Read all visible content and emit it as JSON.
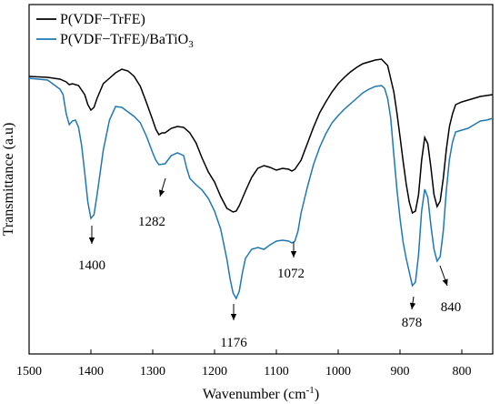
{
  "chart_data": {
    "type": "line",
    "xlabel": "Wavenumber (cm",
    "xlabel_sup": "-1",
    "xlabel_close": ")",
    "ylabel": "Transmittance (a.u)",
    "xlim": [
      1500,
      750
    ],
    "x_reversed": true,
    "xticks": [
      1500,
      1400,
      1300,
      1200,
      1100,
      1000,
      900,
      800
    ],
    "y_tick_labels_shown": false,
    "grid": false,
    "legend_position": "top-left",
    "series": [
      {
        "name": "P(VDF−TrFE)",
        "color": "#000000",
        "points": [
          [
            1500,
            84
          ],
          [
            1470,
            85
          ],
          [
            1450,
            87
          ],
          [
            1440,
            90
          ],
          [
            1435,
            93
          ],
          [
            1430,
            92
          ],
          [
            1420,
            94
          ],
          [
            1410,
            104
          ],
          [
            1405,
            115
          ],
          [
            1400,
            121
          ],
          [
            1395,
            118
          ],
          [
            1390,
            108
          ],
          [
            1380,
            92
          ],
          [
            1370,
            86
          ],
          [
            1360,
            80
          ],
          [
            1350,
            76
          ],
          [
            1340,
            78
          ],
          [
            1330,
            84
          ],
          [
            1320,
            95
          ],
          [
            1310,
            113
          ],
          [
            1300,
            132
          ],
          [
            1295,
            142
          ],
          [
            1290,
            148
          ],
          [
            1285,
            146
          ],
          [
            1280,
            146
          ],
          [
            1270,
            141
          ],
          [
            1260,
            139
          ],
          [
            1250,
            140
          ],
          [
            1240,
            146
          ],
          [
            1230,
            157
          ],
          [
            1220,
            174
          ],
          [
            1210,
            189
          ],
          [
            1200,
            200
          ],
          [
            1190,
            216
          ],
          [
            1180,
            229
          ],
          [
            1170,
            233
          ],
          [
            1165,
            232
          ],
          [
            1160,
            226
          ],
          [
            1150,
            210
          ],
          [
            1140,
            195
          ],
          [
            1130,
            185
          ],
          [
            1120,
            182
          ],
          [
            1110,
            184
          ],
          [
            1100,
            187
          ],
          [
            1090,
            185
          ],
          [
            1080,
            186
          ],
          [
            1075,
            188
          ],
          [
            1070,
            186
          ],
          [
            1060,
            176
          ],
          [
            1050,
            158
          ],
          [
            1040,
            140
          ],
          [
            1030,
            124
          ],
          [
            1020,
            112
          ],
          [
            1010,
            101
          ],
          [
            1000,
            92
          ],
          [
            990,
            85
          ],
          [
            980,
            79
          ],
          [
            970,
            74
          ],
          [
            960,
            70
          ],
          [
            950,
            68
          ],
          [
            940,
            66
          ],
          [
            930,
            65
          ],
          [
            920,
            72
          ],
          [
            910,
            101
          ],
          [
            905,
            124
          ],
          [
            900,
            150
          ],
          [
            895,
            177
          ],
          [
            890,
            202
          ],
          [
            885,
            222
          ],
          [
            880,
            234
          ],
          [
            875,
            232
          ],
          [
            870,
            214
          ],
          [
            865,
            176
          ],
          [
            860,
            151
          ],
          [
            855,
            158
          ],
          [
            850,
            184
          ],
          [
            845,
            214
          ],
          [
            840,
            227
          ],
          [
            835,
            221
          ],
          [
            830,
            196
          ],
          [
            825,
            164
          ],
          [
            820,
            139
          ],
          [
            815,
            125
          ],
          [
            810,
            115
          ],
          [
            800,
            112
          ],
          [
            790,
            110
          ],
          [
            780,
            108
          ],
          [
            770,
            106
          ],
          [
            760,
            105
          ],
          [
            750,
            104
          ]
        ]
      },
      {
        "name": "P(VDF−TrFE)/BaTiO",
        "name_sub": "3",
        "color": "#1f77b4",
        "points": [
          [
            1500,
            86
          ],
          [
            1470,
            88
          ],
          [
            1460,
            93
          ],
          [
            1450,
            98
          ],
          [
            1445,
            104
          ],
          [
            1440,
            125
          ],
          [
            1435,
            137
          ],
          [
            1430,
            133
          ],
          [
            1425,
            132
          ],
          [
            1420,
            140
          ],
          [
            1415,
            160
          ],
          [
            1410,
            190
          ],
          [
            1405,
            222
          ],
          [
            1400,
            240
          ],
          [
            1395,
            236
          ],
          [
            1390,
            214
          ],
          [
            1380,
            165
          ],
          [
            1370,
            132
          ],
          [
            1360,
            117
          ],
          [
            1350,
            118
          ],
          [
            1340,
            123
          ],
          [
            1330,
            128
          ],
          [
            1320,
            135
          ],
          [
            1310,
            150
          ],
          [
            1300,
            168
          ],
          [
            1295,
            176
          ],
          [
            1290,
            181
          ],
          [
            1280,
            180
          ],
          [
            1270,
            171
          ],
          [
            1260,
            168
          ],
          [
            1250,
            171
          ],
          [
            1245,
            185
          ],
          [
            1240,
            196
          ],
          [
            1230,
            203
          ],
          [
            1220,
            209
          ],
          [
            1210,
            218
          ],
          [
            1200,
            232
          ],
          [
            1190,
            252
          ],
          [
            1180,
            285
          ],
          [
            1175,
            306
          ],
          [
            1170,
            322
          ],
          [
            1165,
            328
          ],
          [
            1160,
            320
          ],
          [
            1155,
            300
          ],
          [
            1150,
            284
          ],
          [
            1140,
            274
          ],
          [
            1130,
            272
          ],
          [
            1120,
            274
          ],
          [
            1110,
            269
          ],
          [
            1100,
            265
          ],
          [
            1090,
            264
          ],
          [
            1080,
            265
          ],
          [
            1075,
            267
          ],
          [
            1070,
            265
          ],
          [
            1065,
            254
          ],
          [
            1060,
            234
          ],
          [
            1050,
            206
          ],
          [
            1040,
            181
          ],
          [
            1030,
            162
          ],
          [
            1020,
            147
          ],
          [
            1010,
            135
          ],
          [
            1000,
            127
          ],
          [
            990,
            120
          ],
          [
            980,
            114
          ],
          [
            970,
            108
          ],
          [
            960,
            102
          ],
          [
            950,
            98
          ],
          [
            940,
            95
          ],
          [
            930,
            94
          ],
          [
            925,
            97
          ],
          [
            920,
            108
          ],
          [
            915,
            130
          ],
          [
            910,
            170
          ],
          [
            905,
            208
          ],
          [
            900,
            240
          ],
          [
            895,
            266
          ],
          [
            890,
            284
          ],
          [
            885,
            299
          ],
          [
            880,
            314
          ],
          [
            875,
            310
          ],
          [
            870,
            280
          ],
          [
            865,
            232
          ],
          [
            860,
            208
          ],
          [
            855,
            217
          ],
          [
            850,
            248
          ],
          [
            845,
            274
          ],
          [
            840,
            287
          ],
          [
            835,
            282
          ],
          [
            830,
            254
          ],
          [
            825,
            209
          ],
          [
            820,
            175
          ],
          [
            815,
            156
          ],
          [
            810,
            145
          ],
          [
            800,
            143
          ],
          [
            790,
            141
          ],
          [
            780,
            137
          ],
          [
            770,
            133
          ],
          [
            760,
            132
          ],
          [
            750,
            130
          ]
        ]
      }
    ],
    "annotations": [
      {
        "label": "1400",
        "x": 1400
      },
      {
        "label": "1282",
        "x": 1282
      },
      {
        "label": "1176",
        "x": 1176
      },
      {
        "label": "1072",
        "x": 1072
      },
      {
        "label": "878",
        "x": 878
      },
      {
        "label": "840",
        "x": 840
      }
    ]
  }
}
